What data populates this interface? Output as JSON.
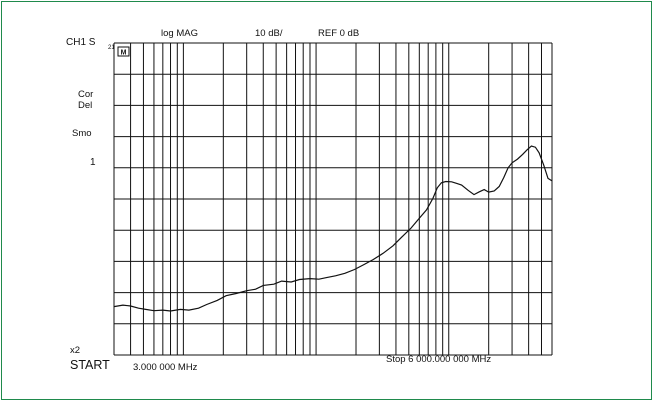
{
  "header": {
    "channel": "CH1 S",
    "channel_sub": "21",
    "format": "log MAG",
    "scale": "10 dB/",
    "reference": "REF 0 dB"
  },
  "side_annotations": {
    "marker_glyph": "M",
    "correction": "Cor",
    "delay": "Del",
    "smoothing": "Smo",
    "ref_marker": "1",
    "averaging": "x2"
  },
  "footer": {
    "start_label": "START",
    "start_value": "3.000 000 MHz",
    "stop": "Stop 6 000.000 000 MHz"
  },
  "colors": {
    "trace": "#111111",
    "grid": "#111111",
    "frame_border": "#1f8a4c",
    "background": "#ffffff"
  },
  "chart_data": {
    "type": "line",
    "title": "",
    "xlabel": "",
    "ylabel": "",
    "x_scale": "log",
    "x_unit": "MHz",
    "xlim": [
      3,
      6000
    ],
    "y_unit": "dB",
    "ylim": [
      -100,
      0
    ],
    "grid": true,
    "series": [
      {
        "x": [
          3,
          3.5,
          4,
          4.6,
          5.2,
          6,
          7,
          8,
          9.5,
          11,
          13,
          15,
          18,
          21,
          25,
          30,
          35,
          40,
          48,
          55,
          65,
          75,
          90,
          105,
          120,
          140,
          165,
          195,
          230,
          270,
          320,
          380,
          440,
          520,
          600,
          680,
          760,
          820,
          880,
          950,
          1050,
          1150,
          1250,
          1400,
          1550,
          1700,
          1850,
          2000,
          2200,
          2400,
          2600,
          2800,
          3000,
          3300,
          3600,
          3900,
          4200,
          4500,
          4800,
          5200,
          5600,
          6000
        ],
        "y": [
          -84.5,
          -84.0,
          -84.3,
          -85.0,
          -85.4,
          -85.8,
          -85.6,
          -85.9,
          -85.4,
          -85.6,
          -85.0,
          -83.8,
          -82.5,
          -81.0,
          -80.3,
          -79.4,
          -78.9,
          -77.7,
          -77.3,
          -76.3,
          -76.6,
          -75.8,
          -75.5,
          -75.7,
          -75.2,
          -74.6,
          -73.8,
          -72.6,
          -71.0,
          -69.4,
          -67.4,
          -65.0,
          -62.3,
          -59.3,
          -56.2,
          -53.5,
          -49.8,
          -46.4,
          -44.8,
          -44.4,
          -44.5,
          -45.0,
          -45.5,
          -47.2,
          -48.6,
          -47.7,
          -47.0,
          -47.8,
          -47.4,
          -46.0,
          -43.1,
          -40.0,
          -38.4,
          -37.2,
          -35.7,
          -34.2,
          -33.0,
          -33.4,
          -35.2,
          -39.2,
          -43.4,
          -44.2
        ]
      }
    ]
  }
}
